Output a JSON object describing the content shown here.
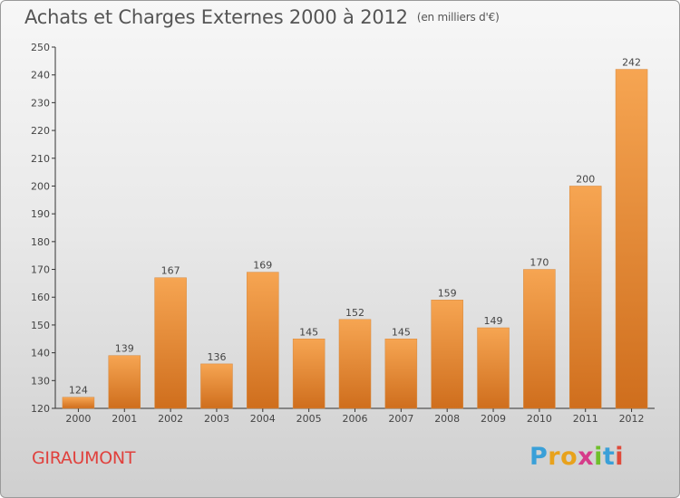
{
  "header": {
    "title": "Achats et Charges Externes 2000 à 2012",
    "unit": "(en milliers d'€)"
  },
  "footer": {
    "city": "GIRAUMONT",
    "logo_letters": [
      "P",
      "r",
      "o",
      "x",
      "i",
      "t",
      "i"
    ],
    "logo_colors": [
      "#3aa0d8",
      "#e8a21c",
      "#e8a21c",
      "#d63c8a",
      "#6fbf2a",
      "#3aa0d8",
      "#e04a3a"
    ]
  },
  "colors": {
    "bar_light": "#f6a552",
    "bar_dark": "#cf6e1d"
  },
  "chart_data": {
    "type": "bar",
    "title": "Achats et Charges Externes 2000 à 2012",
    "subtitle": "(en milliers d'€)",
    "xlabel": "",
    "ylabel": "",
    "categories": [
      "2000",
      "2001",
      "2002",
      "2003",
      "2004",
      "2005",
      "2006",
      "2007",
      "2008",
      "2009",
      "2010",
      "2011",
      "2012"
    ],
    "values": [
      124,
      139,
      167,
      136,
      169,
      145,
      152,
      145,
      159,
      149,
      170,
      200,
      242
    ],
    "ylim": [
      120,
      250
    ],
    "yticks": [
      120,
      130,
      140,
      150,
      160,
      170,
      180,
      190,
      200,
      210,
      220,
      230,
      240,
      250
    ],
    "grid": false,
    "legend": "none"
  }
}
